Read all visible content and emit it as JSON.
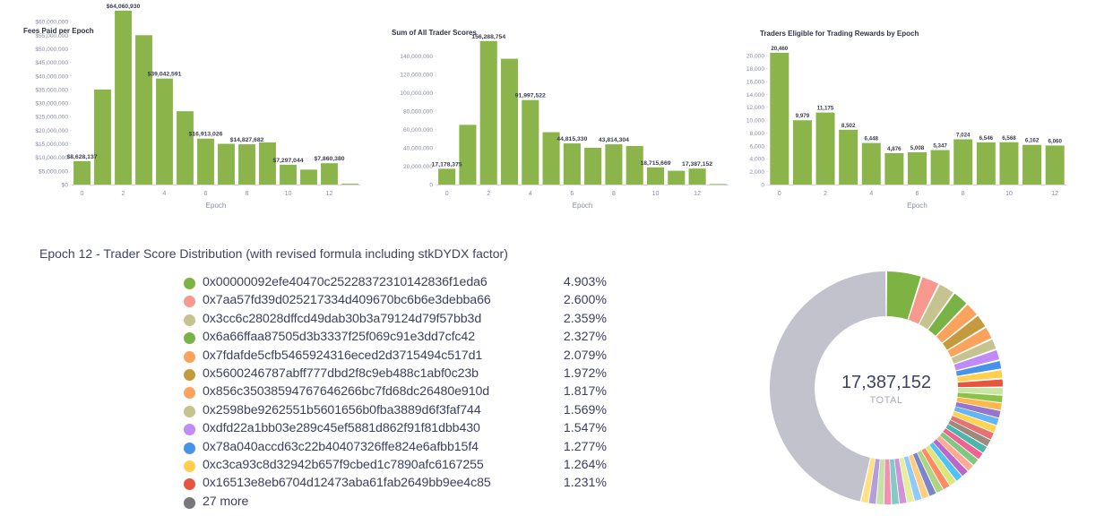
{
  "charts": {
    "fees": {
      "title": "Fees Paid per Epoch",
      "xlabel": "Epoch",
      "yticks": [
        "$0",
        "$5,000,000",
        "$10,000,000",
        "$15,000,000",
        "$20,000,000",
        "$25,000,000",
        "$30,000,000",
        "$35,000,000",
        "$40,000,000",
        "$45,000,000",
        "$50,000,000",
        "$55,000,000",
        "$60,000,000"
      ],
      "xticks": [
        "0",
        "2",
        "4",
        "6",
        "8",
        "10",
        "12"
      ]
    },
    "scores": {
      "title": "Sum of All Trader Scores",
      "xlabel": "Epoch",
      "yticks": [
        "0",
        "20,000,000",
        "40,000,000",
        "60,000,000",
        "80,000,000",
        "100,000,000",
        "120,000,000",
        "140,000,000"
      ],
      "xticks": [
        "0",
        "2",
        "4",
        "6",
        "8",
        "10",
        "12"
      ]
    },
    "traders": {
      "title": "Traders Eligible for Trading Rewards by Epoch",
      "xlabel": "Epoch",
      "yticks": [
        "0",
        "2,000",
        "4,000",
        "6,000",
        "8,000",
        "10,000",
        "12,000",
        "14,000",
        "16,000",
        "18,000",
        "20,000"
      ],
      "xticks": [
        "0",
        "2",
        "4",
        "6",
        "8",
        "10",
        "12"
      ]
    }
  },
  "distribution": {
    "title": "Epoch 12 - Trader Score Distribution (with revised formula including stkDYDX factor)",
    "total": "17,387,152",
    "total_label": "TOTAL"
  },
  "chart_data": [
    {
      "type": "bar",
      "title": "Fees Paid per Epoch",
      "xlabel": "Epoch",
      "ylabel": "",
      "categories": [
        "0",
        "1",
        "2",
        "3",
        "4",
        "5",
        "6",
        "7",
        "8",
        "9",
        "10",
        "11",
        "12",
        "13"
      ],
      "values": [
        8628137,
        35000000,
        64060930,
        55000000,
        39042591,
        27000000,
        16913026,
        15000000,
        14827682,
        15500000,
        7297044,
        5500000,
        7860380,
        300000
      ],
      "data_labels": {
        "0": "$8,628,137",
        "2": "$64,060,930",
        "4": "$39,042,591",
        "6": "$16,913,026",
        "8": "$14,827,682",
        "10": "$7,297,044",
        "12": "$7,860,380"
      },
      "ylim": [
        0,
        65000000
      ],
      "color": "#8bb54a"
    },
    {
      "type": "bar",
      "title": "Sum of All Trader Scores",
      "xlabel": "Epoch",
      "ylabel": "",
      "categories": [
        "0",
        "1",
        "2",
        "3",
        "4",
        "5",
        "6",
        "7",
        "8",
        "9",
        "10",
        "11",
        "12",
        "13"
      ],
      "values": [
        17178375,
        65000000,
        156288754,
        137000000,
        91997522,
        57000000,
        44815330,
        40000000,
        43814304,
        42000000,
        18715669,
        15000000,
        17387152,
        600000
      ],
      "data_labels": {
        "0": "17,178,375",
        "2": "156,288,754",
        "4": "91,997,522",
        "6": "44,815,330",
        "8": "43,814,304",
        "10": "18,715,669",
        "12": "17,387,152"
      },
      "ylim": [
        0,
        160000000
      ],
      "color": "#8bb54a"
    },
    {
      "type": "bar",
      "title": "Traders Eligible for Trading Rewards by Epoch",
      "xlabel": "Epoch",
      "ylabel": "",
      "categories": [
        "0",
        "1",
        "2",
        "3",
        "4",
        "5",
        "6",
        "7",
        "8",
        "9",
        "10",
        "11",
        "12"
      ],
      "values": [
        20460,
        9979,
        11175,
        8502,
        6448,
        4876,
        5008,
        5347,
        7024,
        6546,
        6568,
        6162,
        6060
      ],
      "data_labels": {
        "0": "20,460",
        "1": "9,979",
        "2": "11,175",
        "3": "8,502",
        "4": "6,448",
        "5": "4,876",
        "6": "5,008",
        "7": "5,347",
        "8": "7,024",
        "9": "6,546",
        "10": "6,568",
        "11": "6,162",
        "12": "6,060"
      },
      "ylim": [
        0,
        21000
      ],
      "color": "#8bb54a"
    },
    {
      "type": "pie",
      "donut": true,
      "title": "Epoch 12 - Trader Score Distribution (with revised formula including stkDYDX factor)",
      "total": "17,387,152",
      "slices": [
        {
          "label": "0x00000092efe40470c25228372310142836f1eda6",
          "value": 4.903,
          "display": "4.903%",
          "color": "#7cb342"
        },
        {
          "label": "0x7aa57fd39d025217334d409670bc6b6e3debba66",
          "value": 2.6,
          "display": "2.600%",
          "color": "#f8998f"
        },
        {
          "label": "0x3cc6c28028dffcd49dab30b3a79124d79f57bb3d",
          "value": 2.359,
          "display": "2.359%",
          "color": "#c5c38f"
        },
        {
          "label": "0x6a66ffaa87505d3b3337f25f069c91e3dd7cfc42",
          "value": 2.327,
          "display": "2.327%",
          "color": "#79b346"
        },
        {
          "label": "0x7fdafde5cfb5465924316eced2d3715494c517d1",
          "value": 2.079,
          "display": "2.079%",
          "color": "#fba35d"
        },
        {
          "label": "0x5600246787abff777dbd2f8c9eb488c1abf0c23b",
          "value": 1.972,
          "display": "1.972%",
          "color": "#c59a3e"
        },
        {
          "label": "0x856c35038594767646266bc7fd68dc26480e910d",
          "value": 1.817,
          "display": "1.817%",
          "color": "#fba35d"
        },
        {
          "label": "0x2598be9262551b5601656b0fba3889d6f3faf744",
          "value": 1.569,
          "display": "1.569%",
          "color": "#c5c38f"
        },
        {
          "label": "0xdfd22a1bb03e289c45ef5881d862f91f81dbb430",
          "value": 1.547,
          "display": "1.547%",
          "color": "#c08bf7"
        },
        {
          "label": "0x78a040accd63c22b40407326ffe824e6afbb15f4",
          "value": 1.277,
          "display": "1.277%",
          "color": "#4594e8"
        },
        {
          "label": "0xc3ca93c8d32942b657f9cbed1c7890afc6167255",
          "value": 1.264,
          "display": "1.264%",
          "color": "#ffcf4d"
        },
        {
          "label": "0x16513e8eb6704d12473aba61fab2649bb9ee4c85",
          "value": 1.231,
          "display": "1.231%",
          "color": "#e9543f"
        }
      ],
      "other": {
        "label": "27 more",
        "color": "#77787c"
      }
    }
  ]
}
